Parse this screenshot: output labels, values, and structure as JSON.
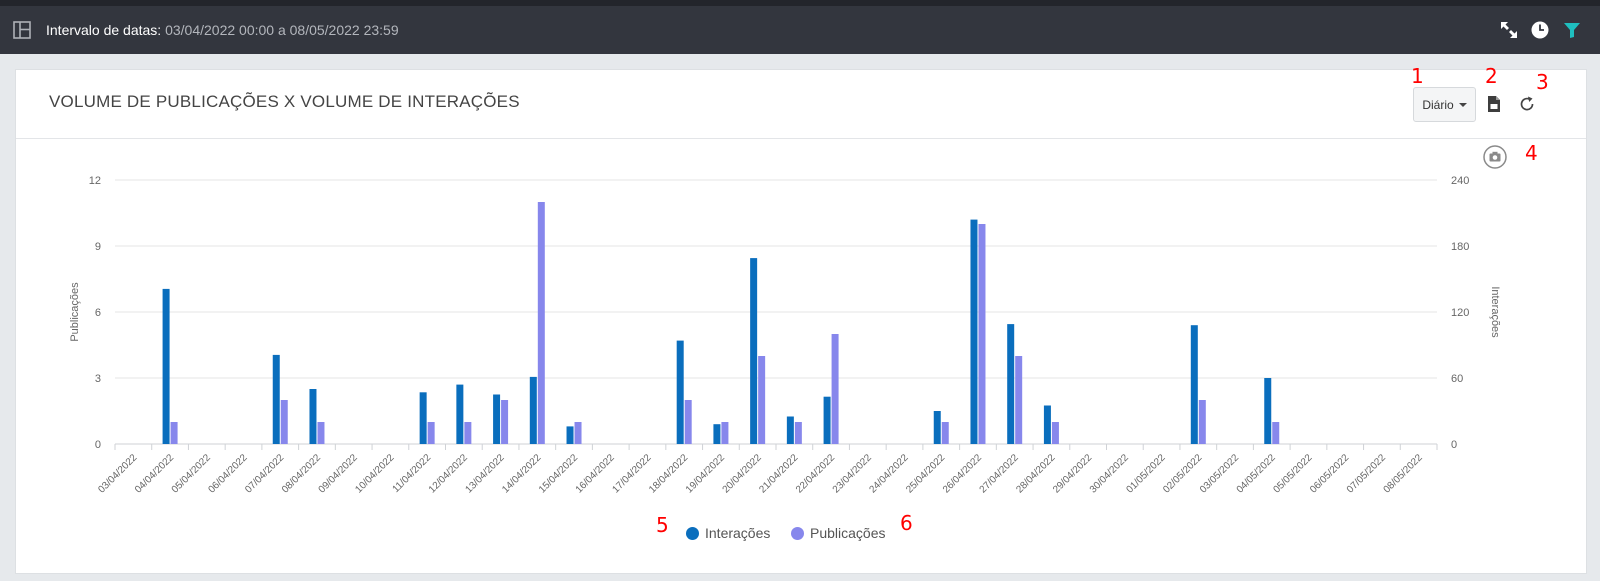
{
  "toolbar": {
    "label": "Intervalo de datas",
    "separator": ":",
    "range": "03/04/2022 00:00 a 08/05/2022 23:59",
    "icons": [
      "layout-panel-icon",
      "fullscreen-icon",
      "clock-icon",
      "filter-icon"
    ],
    "filter_color": "#1fbfbf"
  },
  "card": {
    "title": "VOLUME DE PUBLICAÇÕES X VOLUME DE INTERAÇÕES",
    "period_dropdown": "Diário",
    "annotations": [
      "1",
      "2",
      "3",
      "4",
      "5",
      "6"
    ],
    "icons": [
      "export-pdf-icon",
      "refresh-icon",
      "camera-icon"
    ]
  },
  "chart_data": {
    "type": "bar",
    "left_axis": {
      "label": "Publicações",
      "ticks": [
        "0",
        "3",
        "6",
        "9",
        "12"
      ],
      "range": [
        0,
        12
      ]
    },
    "right_axis": {
      "label": "Interações",
      "ticks": [
        "0",
        "60",
        "120",
        "180",
        "240"
      ],
      "range": [
        0,
        240
      ]
    },
    "grid": true,
    "legend_position": "bottom-center",
    "categories": [
      "03/04/2022",
      "04/04/2022",
      "05/04/2022",
      "06/04/2022",
      "07/04/2022",
      "08/04/2022",
      "09/04/2022",
      "10/04/2022",
      "11/04/2022",
      "12/04/2022",
      "13/04/2022",
      "14/04/2022",
      "15/04/2022",
      "16/04/2022",
      "17/04/2022",
      "18/04/2022",
      "19/04/2022",
      "20/04/2022",
      "21/04/2022",
      "22/04/2022",
      "23/04/2022",
      "24/04/2022",
      "25/04/2022",
      "26/04/2022",
      "27/04/2022",
      "28/04/2022",
      "29/04/2022",
      "30/04/2022",
      "01/05/2022",
      "02/05/2022",
      "03/05/2022",
      "04/05/2022",
      "05/05/2022",
      "06/05/2022",
      "07/05/2022",
      "08/05/2022"
    ],
    "series": [
      {
        "name": "Interações",
        "axis": "right",
        "color": "#0a6ebd",
        "values": [
          0,
          141,
          0,
          0,
          81,
          50,
          0,
          0,
          47,
          54,
          45,
          61,
          16,
          0,
          0,
          94,
          18,
          169,
          25,
          43,
          0,
          0,
          30,
          204,
          109,
          35,
          0,
          0,
          0,
          108,
          0,
          60,
          0,
          0,
          0,
          0
        ]
      },
      {
        "name": "Publicações",
        "axis": "left",
        "color": "#8787ec",
        "values": [
          0,
          1,
          0,
          0,
          2,
          1,
          0,
          0,
          1,
          1,
          2,
          11,
          1,
          0,
          0,
          2,
          1,
          4,
          1,
          5,
          0,
          0,
          1,
          10,
          4,
          1,
          0,
          0,
          0,
          2,
          0,
          1,
          0,
          0,
          0,
          0
        ]
      }
    ]
  }
}
